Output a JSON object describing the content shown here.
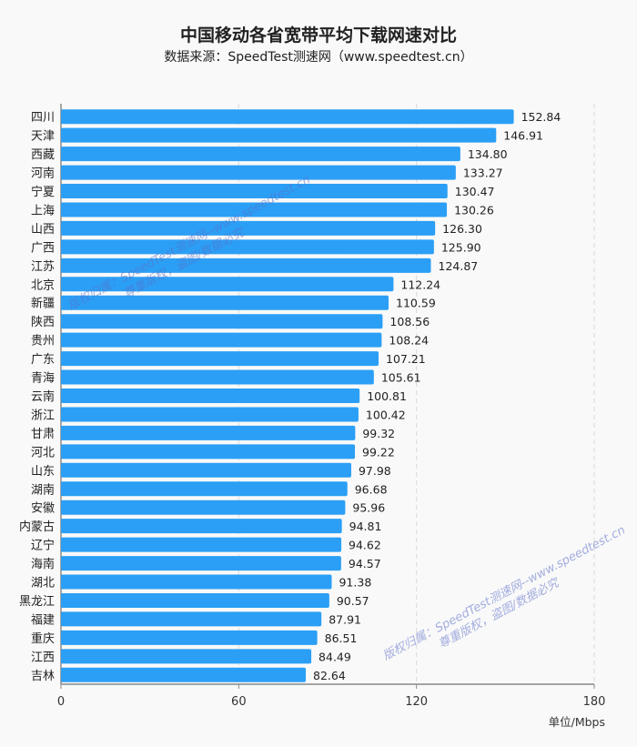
{
  "chart_data": {
    "type": "bar",
    "orientation": "horizontal",
    "title": "中国移动各省宽带平均下载网速对比",
    "subtitle": "数据来源：SpeedTest测速网（www.speedtest.cn）",
    "xlabel": "单位/Mbps",
    "xlim": [
      0,
      180
    ],
    "xticks": [
      0,
      60,
      120,
      180
    ],
    "grid": "vertical dashed",
    "bar_color": "#2b9ff5",
    "categories": [
      "四川",
      "天津",
      "西藏",
      "河南",
      "宁夏",
      "上海",
      "山西",
      "广西",
      "江苏",
      "北京",
      "新疆",
      "陕西",
      "贵州",
      "广东",
      "青海",
      "云南",
      "浙江",
      "甘肃",
      "河北",
      "山东",
      "湖南",
      "安徽",
      "内蒙古",
      "辽宁",
      "海南",
      "湖北",
      "黑龙江",
      "福建",
      "重庆",
      "江西",
      "吉林"
    ],
    "values": [
      152.84,
      146.91,
      134.8,
      133.27,
      130.47,
      130.26,
      126.3,
      125.9,
      124.87,
      112.24,
      110.59,
      108.56,
      108.24,
      107.21,
      105.61,
      100.81,
      100.42,
      99.32,
      99.22,
      97.98,
      96.68,
      95.96,
      94.81,
      94.62,
      94.57,
      91.38,
      90.57,
      87.91,
      86.51,
      84.49,
      82.64
    ]
  },
  "watermark": {
    "line1": "版权归属：SpeedTest测速网--www.speedtest.cn",
    "line2": "尊重版权，盗图/数据必究"
  }
}
